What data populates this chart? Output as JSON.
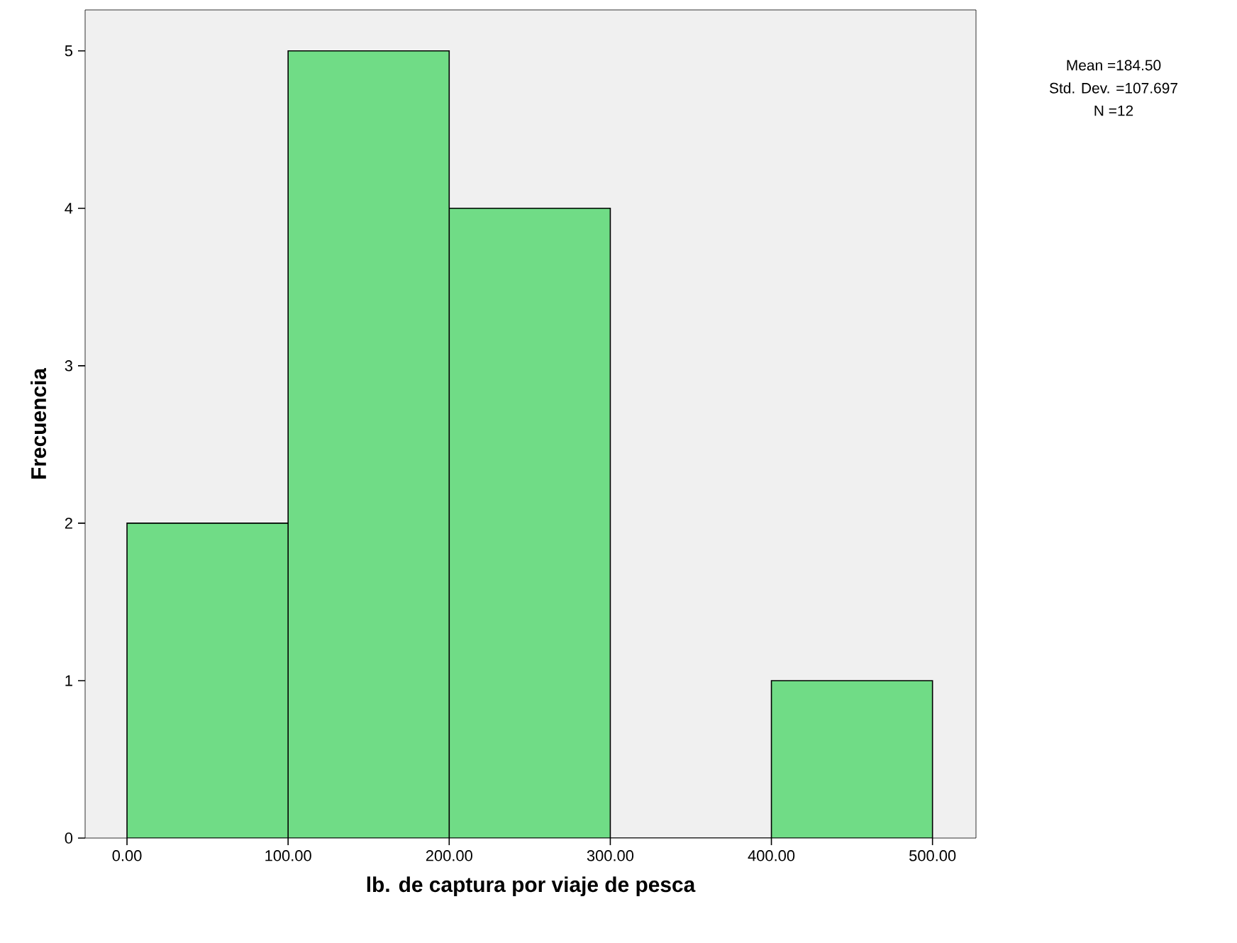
{
  "chart_data": {
    "type": "histogram",
    "xlabel": "lb. de captura por viaje de pesca",
    "ylabel": "Frecuencia",
    "bins": [
      0,
      100,
      200,
      300,
      400,
      500
    ],
    "values": [
      2,
      5,
      4,
      0,
      1
    ],
    "color": "#70dc86",
    "xlim": [
      -26,
      527
    ],
    "ylim": [
      0,
      5.26
    ],
    "xticks": [
      {
        "value": 0,
        "label": "0.00"
      },
      {
        "value": 100,
        "label": "100.00"
      },
      {
        "value": 200,
        "label": "200.00"
      },
      {
        "value": 300,
        "label": "300.00"
      },
      {
        "value": 400,
        "label": "400.00"
      },
      {
        "value": 500,
        "label": "500.00"
      }
    ],
    "yticks": [
      0,
      1,
      2,
      3,
      4,
      5
    ],
    "annotations": [
      "Mean =184.50",
      "Std. Dev. =107.697",
      "N =12"
    ]
  }
}
